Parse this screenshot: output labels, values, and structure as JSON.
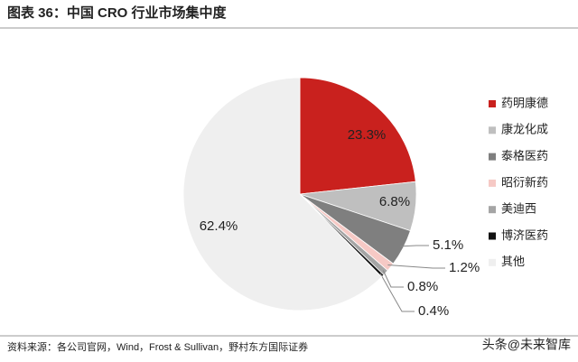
{
  "chart_data": {
    "type": "pie",
    "title": "图表 36：中国 CRO 行业市场集中度",
    "categories": [
      "药明康德",
      "康龙化成",
      "泰格医药",
      "昭衍新药",
      "美迪西",
      "博济医药",
      "其他"
    ],
    "values": [
      23.3,
      6.8,
      5.1,
      1.2,
      0.8,
      0.4,
      62.4
    ],
    "value_labels": [
      "23.3%",
      "6.8%",
      "5.1%",
      "1.2%",
      "0.8%",
      "0.4%",
      "62.4%"
    ],
    "colors": [
      "#c9211e",
      "#bfbfbf",
      "#7f7f7f",
      "#f6c9c5",
      "#a5a5a5",
      "#111111",
      "#efefef"
    ],
    "legend": "right",
    "source": "资料来源：各公司官网，Wind，Frost & Sullivan，野村东方国际证券",
    "watermark": "头条@未来智库"
  }
}
